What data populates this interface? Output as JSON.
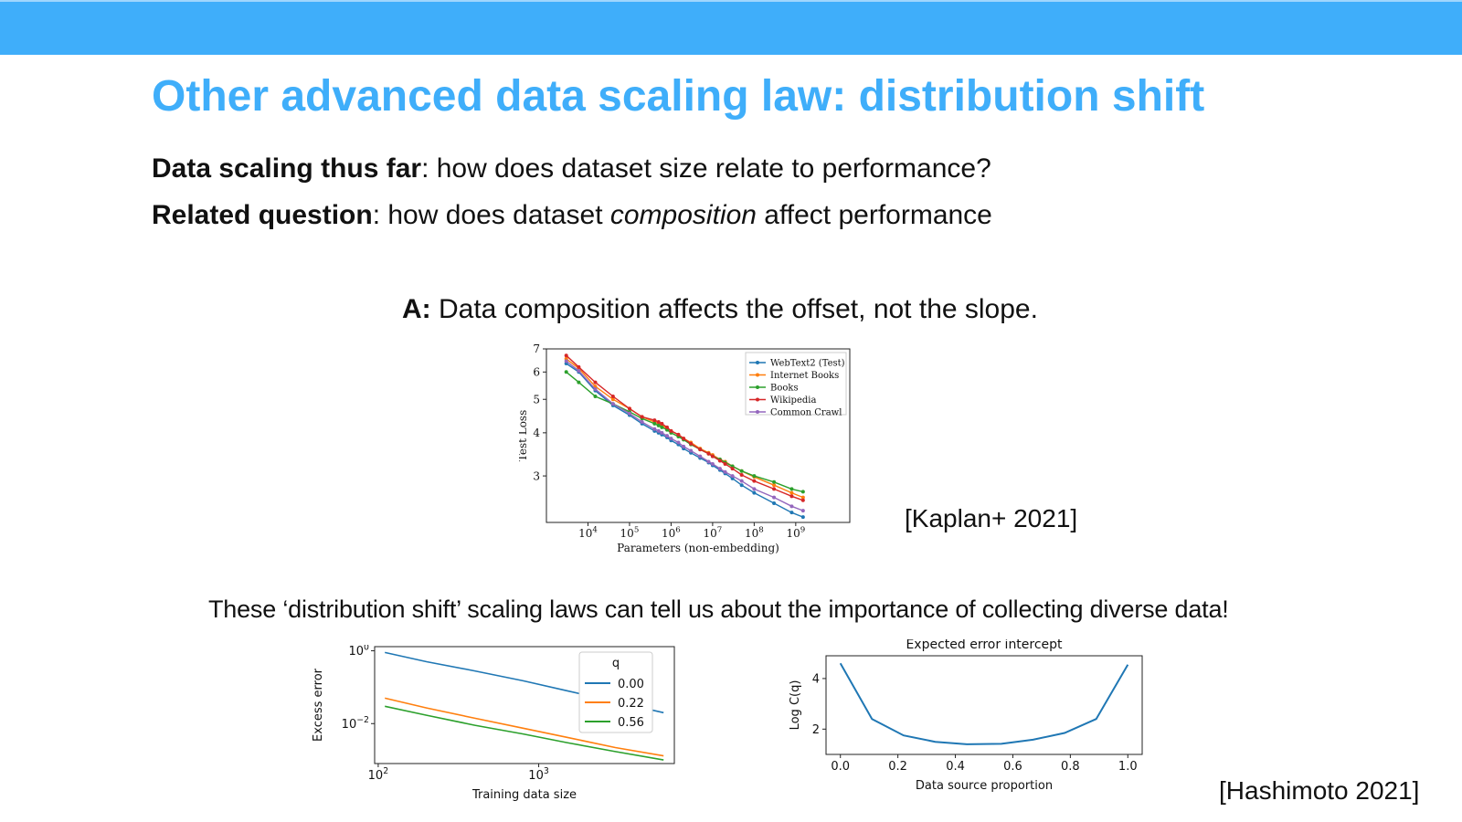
{
  "slide": {
    "title": "Other advanced data scaling law: distribution shift",
    "line1_bold": "Data scaling thus far",
    "line1_rest": ": how does dataset size relate to performance?",
    "line2_bold": "Related question",
    "line2_rest_a": ": how does dataset ",
    "line2_italic": "composition",
    "line2_rest_b": " affect performance",
    "answer_bold": "A:",
    "answer_rest": " Data composition affects the offset, not the slope.",
    "cite_kaplan": "[Kaplan+ 2021]",
    "note": "These ‘distribution shift’ scaling laws can tell us about the importance of collecting diverse data!",
    "cite_hashimoto": "[Hashimoto 2021]"
  },
  "chart_data": [
    {
      "type": "line",
      "xlabel": "Parameters (non-embedding)",
      "ylabel": "Test Loss",
      "xscale": "log",
      "yscale": "log",
      "xlim": [
        1000,
        20000000000
      ],
      "ylim": [
        2.2,
        7
      ],
      "xticks": [
        {
          "base": "10",
          "exp": "4",
          "v": 10000
        },
        {
          "base": "10",
          "exp": "5",
          "v": 100000
        },
        {
          "base": "10",
          "exp": "6",
          "v": 1000000
        },
        {
          "base": "10",
          "exp": "7",
          "v": 10000000
        },
        {
          "base": "10",
          "exp": "8",
          "v": 100000000
        },
        {
          "base": "10",
          "exp": "9",
          "v": 1000000000
        }
      ],
      "yticks": [
        {
          "label": "7",
          "v": 7
        },
        {
          "label": "6",
          "v": 6
        },
        {
          "label": "5",
          "v": 5
        },
        {
          "label": "4",
          "v": 4
        },
        {
          "label": "3",
          "v": 3
        }
      ],
      "legend_position": "top-right",
      "x": [
        3000,
        6000,
        15000,
        40000,
        100000,
        200000,
        400000,
        500000,
        600000,
        800000,
        1000000,
        1500000,
        2000000,
        3000000,
        5000000,
        8000000,
        10000000,
        15000000,
        20000000,
        30000000,
        50000000,
        100000000,
        300000000,
        800000000,
        1500000000
      ],
      "series": [
        {
          "name": "WebText2 (Test)",
          "color": "#1f77b4",
          "values": [
            6.35,
            6.0,
            5.3,
            4.8,
            4.5,
            4.25,
            4.05,
            4.0,
            3.95,
            3.88,
            3.8,
            3.7,
            3.6,
            3.5,
            3.38,
            3.28,
            3.22,
            3.12,
            3.05,
            2.95,
            2.82,
            2.68,
            2.5,
            2.35,
            2.28
          ]
        },
        {
          "name": "Internet Books",
          "color": "#ff7f0e",
          "values": [
            6.55,
            6.15,
            5.45,
            5.0,
            4.7,
            4.45,
            4.3,
            4.25,
            4.2,
            4.12,
            4.05,
            3.95,
            3.85,
            3.75,
            3.6,
            3.5,
            3.45,
            3.35,
            3.3,
            3.2,
            3.1,
            2.98,
            2.82,
            2.68,
            2.6
          ]
        },
        {
          "name": "Books",
          "color": "#2ca02c",
          "values": [
            6.0,
            5.6,
            5.1,
            4.85,
            4.6,
            4.4,
            4.25,
            4.2,
            4.15,
            4.08,
            4.0,
            3.9,
            3.82,
            3.7,
            3.58,
            3.48,
            3.42,
            3.35,
            3.28,
            3.2,
            3.1,
            3.0,
            2.88,
            2.75,
            2.7
          ]
        },
        {
          "name": "Wikipedia",
          "color": "#d62728",
          "values": [
            6.7,
            6.2,
            5.6,
            5.1,
            4.7,
            4.45,
            4.35,
            4.3,
            4.25,
            4.15,
            4.05,
            3.95,
            3.85,
            3.72,
            3.58,
            3.48,
            3.42,
            3.32,
            3.25,
            3.15,
            3.02,
            2.9,
            2.75,
            2.62,
            2.55
          ]
        },
        {
          "name": "Common Crawl",
          "color": "#9467bd",
          "values": [
            6.45,
            6.05,
            5.35,
            4.85,
            4.55,
            4.3,
            4.1,
            4.05,
            4.0,
            3.92,
            3.85,
            3.75,
            3.65,
            3.55,
            3.42,
            3.3,
            3.25,
            3.15,
            3.08,
            3.0,
            2.9,
            2.75,
            2.6,
            2.45,
            2.38
          ]
        }
      ]
    },
    {
      "type": "line",
      "xlabel": "Training data size",
      "ylabel": "Excess error",
      "xscale": "log",
      "yscale": "log",
      "xlim": [
        95,
        7000
      ],
      "ylim": [
        0.0008,
        1.3
      ],
      "xticks": [
        {
          "base": "10",
          "exp": "2",
          "v": 100
        },
        {
          "base": "10",
          "exp": "3",
          "v": 1000
        }
      ],
      "yticks": [
        {
          "base": "10",
          "exp": "0",
          "v": 1
        },
        {
          "base": "10",
          "exp": "−2",
          "v": 0.01
        }
      ],
      "legend_title": "q",
      "legend_position": "top-right",
      "x": [
        110,
        200,
        400,
        800,
        1500,
        3000,
        6000
      ],
      "series": [
        {
          "name": "0.00",
          "color": "#1f77b4",
          "values": [
            0.9,
            0.5,
            0.28,
            0.15,
            0.08,
            0.04,
            0.02
          ]
        },
        {
          "name": "0.22",
          "color": "#ff7f0e",
          "values": [
            0.05,
            0.027,
            0.014,
            0.0075,
            0.0042,
            0.0022,
            0.0013
          ]
        },
        {
          "name": "0.56",
          "color": "#2ca02c",
          "values": [
            0.03,
            0.017,
            0.009,
            0.0052,
            0.003,
            0.0017,
            0.001
          ]
        }
      ]
    },
    {
      "type": "line",
      "title": "Expected error intercept",
      "xlabel": "Data source proportion",
      "ylabel": "Log C(q)",
      "xlim": [
        -0.05,
        1.05
      ],
      "ylim": [
        1.0,
        4.9
      ],
      "xticks": [
        {
          "label": "0.0",
          "v": 0
        },
        {
          "label": "0.2",
          "v": 0.2
        },
        {
          "label": "0.4",
          "v": 0.4
        },
        {
          "label": "0.6",
          "v": 0.6
        },
        {
          "label": "0.8",
          "v": 0.8
        },
        {
          "label": "1.0",
          "v": 1.0
        }
      ],
      "yticks": [
        {
          "label": "2",
          "v": 2
        },
        {
          "label": "4",
          "v": 4
        }
      ],
      "series": [
        {
          "color": "#1f77b4",
          "x": [
            0.0,
            0.11,
            0.22,
            0.33,
            0.44,
            0.56,
            0.67,
            0.78,
            0.89,
            1.0
          ],
          "values": [
            4.6,
            2.4,
            1.75,
            1.5,
            1.4,
            1.42,
            1.58,
            1.85,
            2.4,
            4.55
          ]
        }
      ]
    }
  ]
}
